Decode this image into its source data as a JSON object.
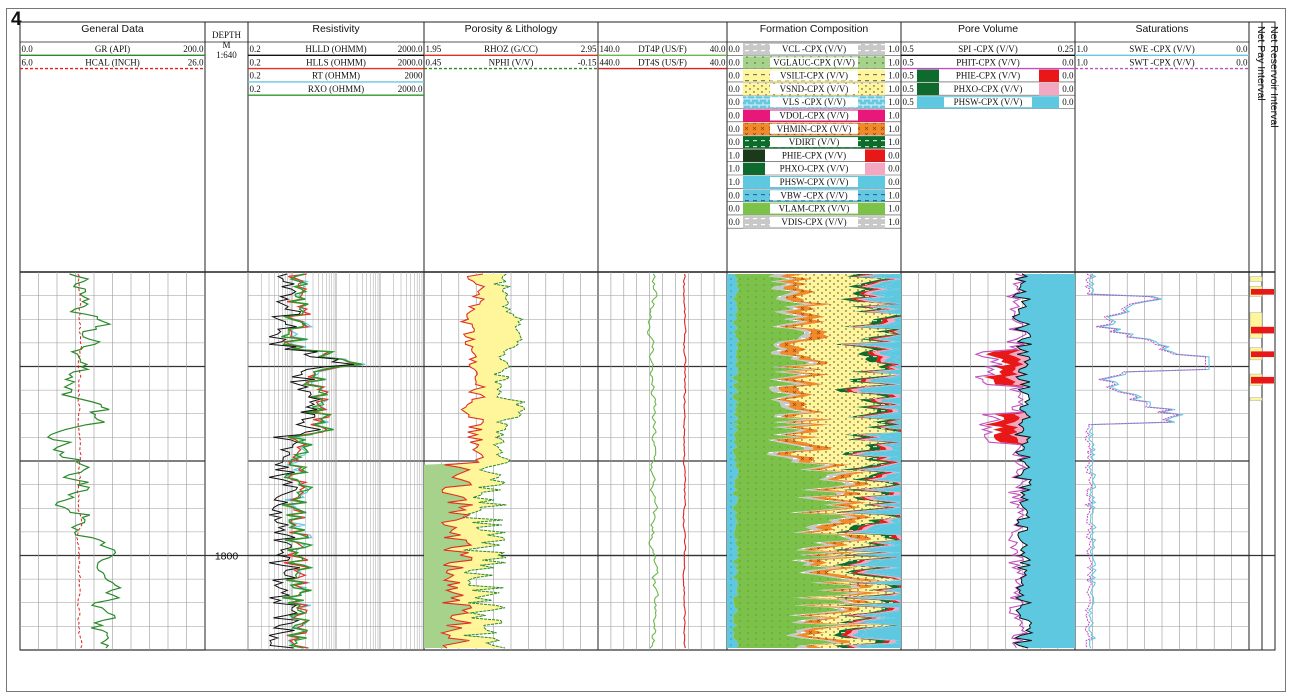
{
  "figure_label": "4",
  "colors": {
    "gr": "#2a8a2a",
    "hcal": "#e02020",
    "hlld": "#111111",
    "hlls": "#e83020",
    "rt": "#66c8e0",
    "rxo": "#2a9a2a",
    "rhoz": "#e03020",
    "nphi": "#2a8a2a",
    "por_fill": "#a6d28c",
    "lith_fill": "#fff59a",
    "dt4p": "#6ab84a",
    "dt4s": "#e02020",
    "pink": "#f4a7c3",
    "red": "#e81818",
    "dkgreen": "#0f6b2d",
    "cyan": "#5ec8e0",
    "swe": "#66c8e0",
    "swt": "#c050c0"
  },
  "chart_data": {
    "type": "line",
    "title": "",
    "depth": {
      "track_title": "DEPTH",
      "unit": "M",
      "scale": "1:640",
      "tick_label": "1800",
      "tick_value": 1800,
      "range": [
        1770,
        1810
      ]
    },
    "tracks": [
      {
        "key": "general",
        "title": "General Data",
        "curves": [
          {
            "name": "GR (API)",
            "left": "0.0",
            "right": "200.0",
            "color": "#2a8a2a"
          },
          {
            "name": "HCAL (INCH)",
            "left": "6.0",
            "right": "26.0",
            "color": "#e02020",
            "dashed": true
          }
        ]
      },
      {
        "key": "resistivity",
        "title": "Resistivity",
        "curves": [
          {
            "name": "HLLD (OHMM)",
            "left": "0.2",
            "right": "2000.0",
            "color": "#111111"
          },
          {
            "name": "HLLS (OHMM)",
            "left": "0.2",
            "right": "2000.0",
            "color": "#e83020"
          },
          {
            "name": "RT (OHMM)",
            "left": "0.2",
            "right": "2000",
            "color": "#66c8e0"
          },
          {
            "name": "RXO (OHMM)",
            "left": "0.2",
            "right": "2000.0",
            "color": "#2a9a2a"
          }
        ]
      },
      {
        "key": "porosity",
        "title": "Porosity & Lithology",
        "curves": [
          {
            "name": "RHOZ (G/CC)",
            "left": "1.95",
            "right": "2.95",
            "color": "#e03020"
          },
          {
            "name": "NPHI (V/V)",
            "left": "0.45",
            "right": "-0.15",
            "color": "#2a8a2a",
            "dashed": true
          }
        ]
      },
      {
        "key": "sonic",
        "title": "",
        "curves": [
          {
            "name": "DT4P (US/F)",
            "left": "140.0",
            "right": "40.0",
            "color": "#6ab84a"
          },
          {
            "name": "DT4S (US/F)",
            "left": "440.0",
            "right": "40.0",
            "color": "#e02020"
          }
        ]
      },
      {
        "key": "composition",
        "title": "Formation Composition",
        "curves": [
          {
            "name": "VCL -CPX (V/V)",
            "left": "0.0",
            "right": "1.0",
            "fill": "#c8c8c8",
            "pattern": "dash"
          },
          {
            "name": "VGLAUC-CPX (V/V)",
            "left": "0.0",
            "right": "1.0",
            "fill": "#a6d28c",
            "pattern": "dot"
          },
          {
            "name": "VSILT-CPX (V/V)",
            "left": "0.0",
            "right": "1.0",
            "fill": "#fff59a",
            "pattern": "dash"
          },
          {
            "name": "VSND-CPX (V/V)",
            "left": "0.0",
            "right": "1.0",
            "fill": "#fff59a",
            "pattern": "dot"
          },
          {
            "name": "VLS -CPX (V/V)",
            "left": "0.0",
            "right": "1.0",
            "fill": "#66c8e0",
            "pattern": "brick"
          },
          {
            "name": "VDOL-CPX (V/V)",
            "left": "0.0",
            "right": "1.0",
            "fill": "#e8187a",
            "pattern": "none"
          },
          {
            "name": "VHMIN-CPX (V/V)",
            "left": "0.0",
            "right": "1.0",
            "fill": "#f08a2a",
            "pattern": "cross"
          },
          {
            "name": "VDIRT (V/V)",
            "left": "0.0",
            "right": "1.0",
            "fill": "#0f6b2d",
            "pattern": "dash"
          },
          {
            "name": "PHIE-CPX (V/V)",
            "left": "1.0",
            "right": "0.0",
            "fill": "#1a3a1a",
            "fill2": "#e81818",
            "pattern": "split"
          },
          {
            "name": "PHXO-CPX (V/V)",
            "left": "1.0",
            "right": "0.0",
            "fill": "#0f6b2d",
            "fill2": "#f4a7c3",
            "pattern": "split"
          },
          {
            "name": "PHSW-CPX (V/V)",
            "left": "1.0",
            "right": "0.0",
            "fill": "#5ec8e0",
            "pattern": "none"
          },
          {
            "name": "VBW -CPX (V/V)",
            "left": "0.0",
            "right": "1.0",
            "fill": "#66c8e0",
            "pattern": "dash"
          },
          {
            "name": "VLAM-CPX (V/V)",
            "left": "0.0",
            "right": "1.0",
            "fill": "#7cc24a",
            "pattern": "none"
          },
          {
            "name": "VDIS-CPX (V/V)",
            "left": "0.0",
            "right": "1.0",
            "fill": "#c8c8c8",
            "pattern": "dash"
          }
        ]
      },
      {
        "key": "porevolume",
        "title": "Pore Volume",
        "curves": [
          {
            "name": "SPI -CPX (V/V)",
            "left": "0.5",
            "right": "0.25",
            "color": "#111111",
            "swatch": "none"
          },
          {
            "name": "PHIT-CPX (V/V)",
            "left": "0.5",
            "right": "0.0",
            "color": "#c050c0",
            "swatch": "none"
          },
          {
            "name": "PHIE-CPX (V/V)",
            "left": "0.5",
            "right": "0.0",
            "fill": "#0f6b2d",
            "fill2": "#e81818",
            "swatch": "split"
          },
          {
            "name": "PHXO-CPX (V/V)",
            "left": "0.5",
            "right": "0.0",
            "fill": "#0f6b2d",
            "fill2": "#f4a7c3",
            "swatch": "split"
          },
          {
            "name": "PHSW-CPX (V/V)",
            "left": "0.5",
            "right": "0.0",
            "fill": "#5ec8e0",
            "swatch": "full"
          }
        ]
      },
      {
        "key": "saturation",
        "title": "Saturations",
        "curves": [
          {
            "name": "SWE -CPX (V/V)",
            "left": "1.0",
            "right": "0.0",
            "color": "#66c8e0"
          },
          {
            "name": "SWT -CPX (V/V)",
            "left": "1.0",
            "right": "0.0",
            "color": "#c050c0",
            "dashed": true
          }
        ]
      },
      {
        "key": "flags",
        "title": "",
        "labels": [
          "Net Pay Interval",
          "Net Reservoir Interval"
        ],
        "net_pay": [
          [
            1771.8,
            1772.4
          ],
          [
            1775.8,
            1776.5
          ],
          [
            1778.4,
            1779.0
          ],
          [
            1781.1,
            1781.8
          ]
        ],
        "net_reservoir": [
          [
            1770.5,
            1771.0
          ],
          [
            1771.5,
            1772.6
          ],
          [
            1774.3,
            1777.0
          ],
          [
            1778.0,
            1779.3
          ],
          [
            1780.8,
            1782.0
          ],
          [
            1783.3,
            1783.6
          ]
        ]
      }
    ]
  }
}
